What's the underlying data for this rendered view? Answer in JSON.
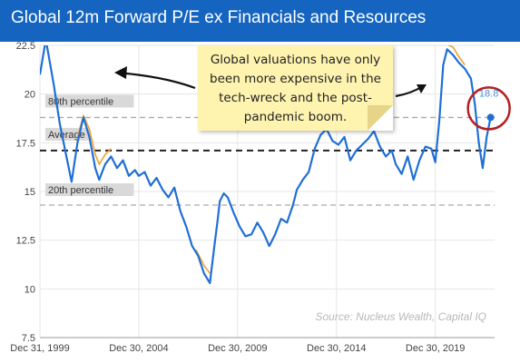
{
  "title": "Global 12m Forward P/E ex Financials and Resources",
  "note": "Global valuations have only been more expensive in the tech-wreck and the post-pandemic boom.",
  "source": "Source: Nucleus Wealth, Capital IQ",
  "latest_label": "18.8",
  "colors": {
    "title_bar": "#1565c0",
    "main_series": "#1f6fd6",
    "alt_series": "#f0a030",
    "circle": "#b22222",
    "note": "#fff3b0"
  },
  "chart_data": {
    "type": "line",
    "x_tick_labels": [
      "Dec 31, 1999",
      "Dec 30, 2004",
      "Dec 30, 2009",
      "Dec 30, 2014",
      "Dec 30, 2019"
    ],
    "x_tick_years": [
      2000,
      2005,
      2010,
      2015,
      2020
    ],
    "xlim": [
      2000.0,
      2023.0
    ],
    "y_ticks": [
      "7.5",
      "10",
      "12.5",
      "15",
      "17.5",
      "20",
      "22.5"
    ],
    "ylim": [
      7.5,
      22.5
    ],
    "reference_lines": [
      {
        "label": "80th percentile",
        "value": 18.8,
        "style": "dashed-gray"
      },
      {
        "label": "Average",
        "value": 17.1,
        "style": "dashed-black"
      },
      {
        "label": "20th percentile",
        "value": 14.3,
        "style": "dashed-gray"
      }
    ],
    "series": [
      {
        "style": "blue",
        "x": [
          2000.0,
          2000.3,
          2000.7,
          2001.0,
          2001.3,
          2001.6,
          2001.9,
          2002.2,
          2002.5,
          2002.8,
          2003.0,
          2003.3,
          2003.6,
          2003.9,
          2004.2,
          2004.5,
          2004.8,
          2005.0,
          2005.3,
          2005.6,
          2005.9,
          2006.2,
          2006.5,
          2006.8,
          2007.1,
          2007.4,
          2007.7,
          2008.0,
          2008.3,
          2008.6,
          2008.8,
          2009.0,
          2009.1,
          2009.3,
          2009.5,
          2009.8,
          2010.1,
          2010.4,
          2010.7,
          2011.0,
          2011.3,
          2011.6,
          2011.9,
          2012.2,
          2012.5,
          2012.8,
          2013.0,
          2013.3,
          2013.6,
          2013.9,
          2014.2,
          2014.5,
          2014.8,
          2015.1,
          2015.4,
          2015.7,
          2016.0,
          2016.3,
          2016.6,
          2016.9,
          2017.2,
          2017.5,
          2017.8,
          2018.0,
          2018.3,
          2018.6,
          2018.9,
          2019.2,
          2019.5,
          2019.8,
          2020.0,
          2020.2,
          2020.4,
          2020.6,
          2020.9,
          2021.2,
          2021.5,
          2021.8,
          2022.0,
          2022.2,
          2022.4,
          2022.6,
          2022.8
        ],
        "y": [
          21.0,
          22.8,
          20.5,
          18.5,
          17.0,
          15.5,
          17.5,
          18.8,
          17.8,
          16.2,
          15.6,
          16.4,
          16.8,
          16.2,
          16.6,
          15.8,
          16.1,
          15.8,
          16.0,
          15.3,
          15.7,
          15.1,
          14.7,
          15.2,
          14.0,
          13.2,
          12.2,
          11.7,
          10.8,
          10.3,
          12.0,
          13.6,
          14.5,
          14.9,
          14.7,
          13.9,
          13.2,
          12.7,
          12.8,
          13.4,
          12.9,
          12.2,
          12.8,
          13.6,
          13.4,
          14.3,
          15.1,
          15.6,
          16.0,
          17.2,
          17.9,
          18.2,
          17.6,
          17.4,
          17.8,
          16.6,
          17.1,
          17.4,
          17.7,
          18.1,
          17.3,
          16.8,
          17.1,
          16.4,
          15.9,
          16.8,
          15.6,
          16.6,
          17.3,
          17.2,
          16.5,
          18.6,
          21.5,
          22.3,
          22.0,
          21.6,
          21.3,
          20.8,
          19.5,
          17.5,
          16.2,
          17.8,
          18.8
        ]
      },
      {
        "style": "orange",
        "x": [
          2001.9,
          2002.2,
          2002.5,
          2002.8,
          2003.0,
          2003.3,
          2003.6,
          2007.9,
          2008.3,
          2008.6,
          2020.5,
          2020.9,
          2021.2,
          2021.5
        ],
        "y": [
          17.8,
          18.9,
          18.2,
          16.9,
          16.4,
          16.9,
          17.2,
          12.0,
          11.2,
          10.8,
          22.6,
          22.4,
          21.9,
          21.5
        ]
      }
    ]
  }
}
